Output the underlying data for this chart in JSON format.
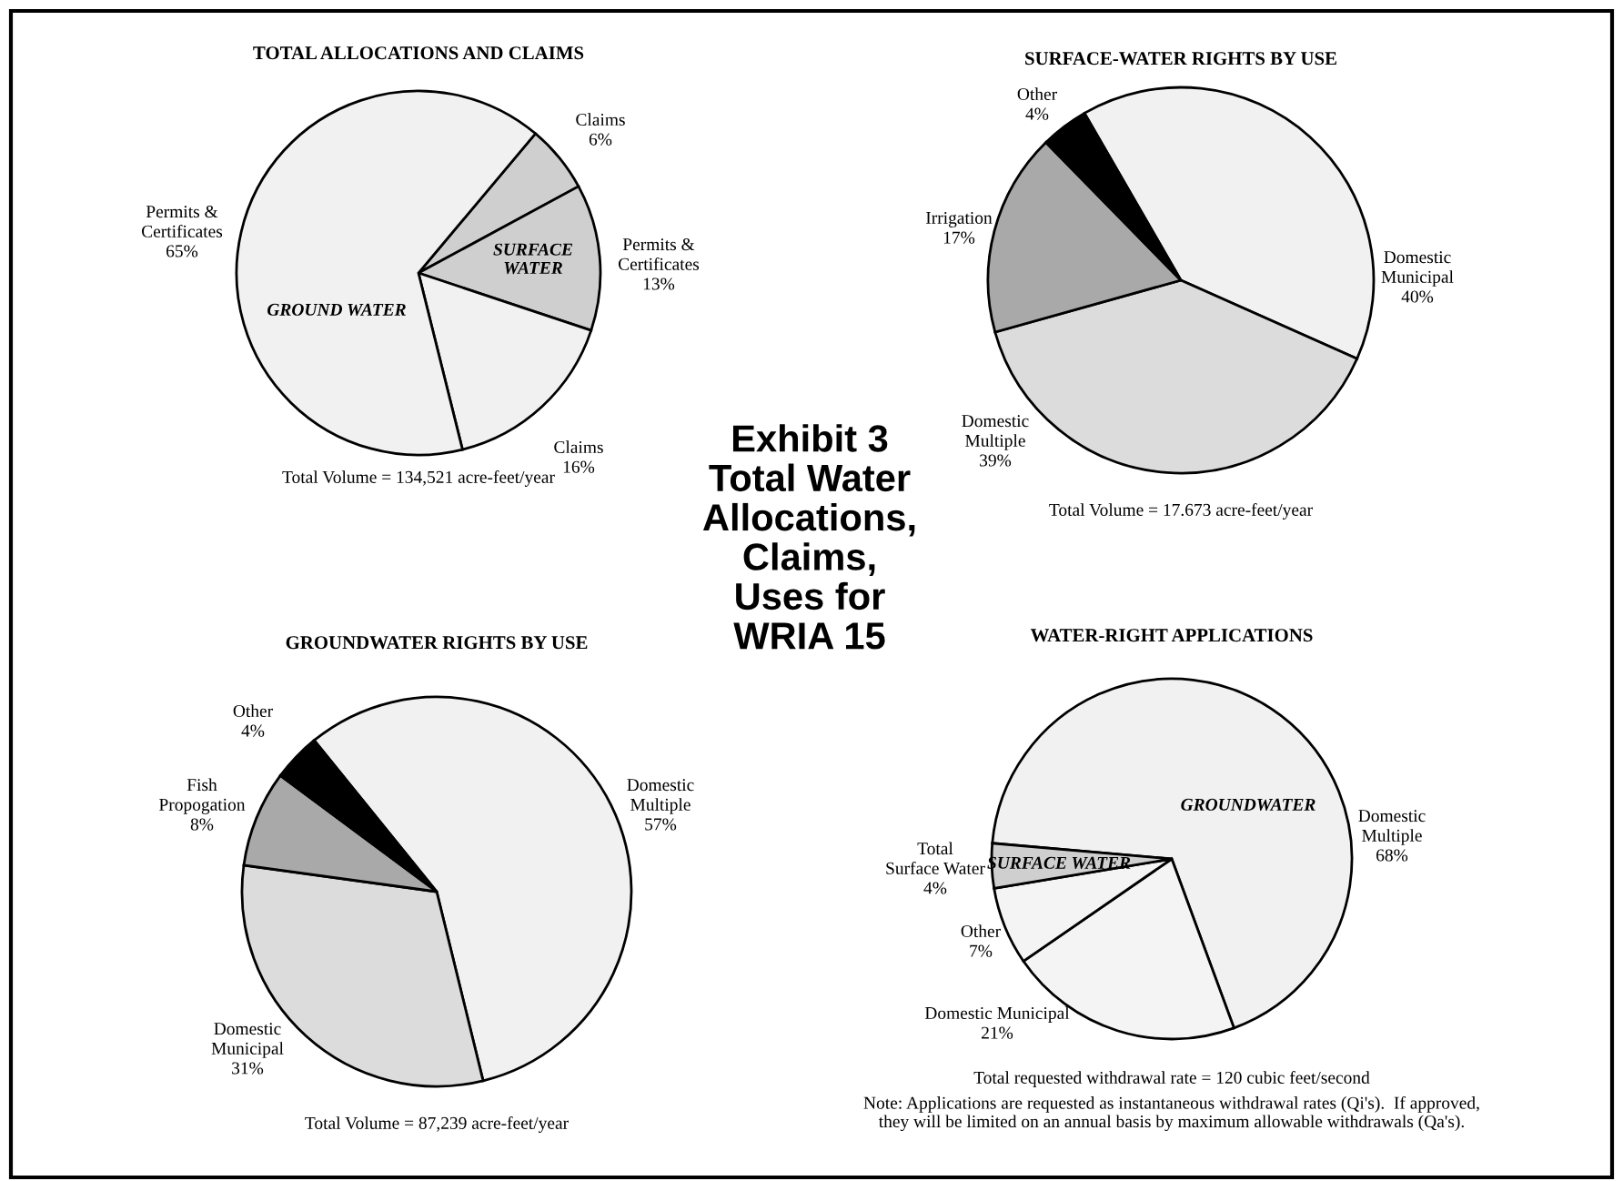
{
  "chart_data": [
    {
      "type": "pie",
      "title": "TOTAL ALLOCATIONS AND CLAIMS",
      "categories": [
        "Claims",
        "Permits &\nCertificates",
        "Claims",
        "Permits &\nCertificates"
      ],
      "values": [
        6,
        13,
        16,
        65
      ],
      "value_labels": [
        "6%",
        "13%",
        "16%",
        "65%"
      ],
      "colors": [
        "#cfcfcf",
        "#cfcfcf",
        "#f1f1f1",
        "#f1f1f1"
      ],
      "annotations": [
        "GROUND WATER",
        "SURFACE\nWATER",
        "Total Volume = 134,521 acre-feet/year"
      ]
    },
    {
      "type": "pie",
      "title": "SURFACE-WATER RIGHTS BY USE",
      "categories": [
        "Domestic\nMunicipal",
        "Domestic\nMultiple",
        "Irrigation",
        "Other"
      ],
      "values": [
        40,
        39,
        17,
        4
      ],
      "value_labels": [
        "40%",
        "39%",
        "17%",
        "4%"
      ],
      "colors": [
        "#f1f1f1",
        "#dcdcdc",
        "#a9a9a9",
        "#000000"
      ],
      "annotations": [
        "Total Volume = 17.673 acre-feet/year"
      ]
    },
    {
      "type": "pie",
      "title": "GROUNDWATER RIGHTS BY USE",
      "categories": [
        "Domestic\nMultiple",
        "Domestic\nMunicipal",
        "Fish\nPropogation",
        "Other"
      ],
      "values": [
        57,
        31,
        8,
        4
      ],
      "value_labels": [
        "57%",
        "31%",
        "8%",
        "4%"
      ],
      "colors": [
        "#f1f1f1",
        "#dcdcdc",
        "#a9a9a9",
        "#000000"
      ],
      "annotations": [
        "Total Volume = 87,239 acre-feet/year"
      ]
    },
    {
      "type": "pie",
      "title": "WATER-RIGHT APPLICATIONS",
      "categories": [
        "Domestic\nMultiple",
        "Domestic Municipal",
        "Other",
        "Total\nSurface Water"
      ],
      "values": [
        68,
        21,
        7,
        4
      ],
      "value_labels": [
        "68%",
        "21%",
        "7%",
        "4%"
      ],
      "colors": [
        "#f1f1f1",
        "#f4f4f4",
        "#f4f4f4",
        "#cfcfcf"
      ],
      "annotations": [
        "GROUNDWATER",
        "SURFACE WATER",
        "Total requested withdrawal rate = 120 cubic feet/second",
        "Note: Applications are requested as instantaneous withdrawal rates (Qi's).  If approved,\nthey will be limited on an annual basis by maximum allowable withdrawals (Qa's)."
      ]
    },
    {
      "type": "other",
      "title": "Exhibit 3\nTotal Water\nAllocations,\nClaims,\nUses for\nWRIA 15"
    }
  ]
}
